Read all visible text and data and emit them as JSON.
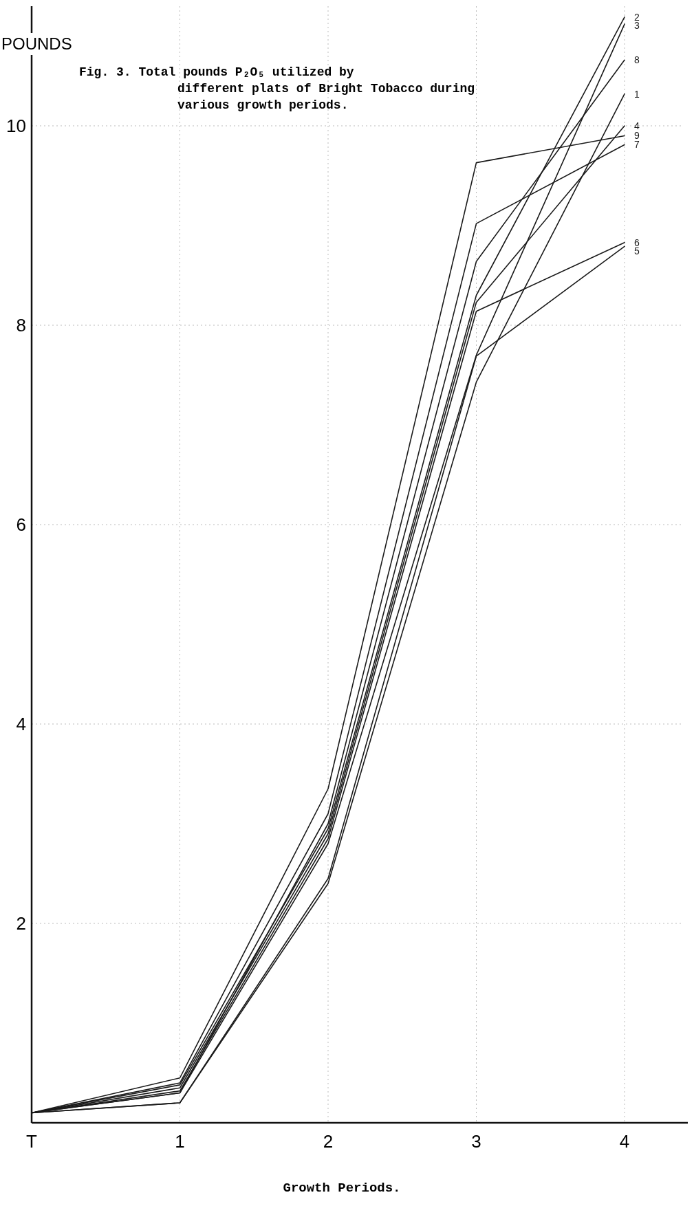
{
  "chart_data": {
    "type": "line",
    "title": "Fig. 3.  Total pounds P₂O₅ utilized by different plats of Bright Tobacco during various growth periods.",
    "xlabel": "Growth Periods.",
    "ylabel": "POUNDS",
    "categories": [
      "T",
      "1",
      "2",
      "3",
      "4"
    ],
    "ylim": [
      0,
      11.2
    ],
    "yticks": [
      2,
      4,
      6,
      8,
      10
    ],
    "grid": true,
    "legend": false,
    "marker": "none",
    "line_style": "solid",
    "series": [
      {
        "name": "1",
        "color": "#1a1a1a",
        "values": [
          0.1,
          0.2,
          2.4,
          7.43,
          10.32
        ]
      },
      {
        "name": "2",
        "color": "#1a1a1a",
        "values": [
          0.1,
          0.38,
          2.95,
          8.3,
          11.09
        ]
      },
      {
        "name": "3",
        "color": "#1a1a1a",
        "values": [
          0.1,
          0.3,
          2.8,
          7.7,
          11.02
        ]
      },
      {
        "name": "4",
        "color": "#1a1a1a",
        "values": [
          0.1,
          0.35,
          2.9,
          8.23,
          10.0
        ]
      },
      {
        "name": "5",
        "color": "#1a1a1a",
        "values": [
          0.1,
          0.2,
          2.45,
          7.69,
          8.79
        ]
      },
      {
        "name": "6",
        "color": "#1a1a1a",
        "values": [
          0.1,
          0.32,
          2.85,
          8.14,
          8.83
        ]
      },
      {
        "name": "7",
        "color": "#1a1a1a",
        "values": [
          0.1,
          0.4,
          3.1,
          9.02,
          9.81
        ]
      },
      {
        "name": "8",
        "color": "#1a1a1a",
        "values": [
          0.1,
          0.3,
          3.0,
          8.64,
          10.66
        ]
      },
      {
        "name": "9",
        "color": "#1a1a1a",
        "values": [
          0.1,
          0.45,
          3.35,
          9.63,
          9.9
        ]
      }
    ]
  }
}
